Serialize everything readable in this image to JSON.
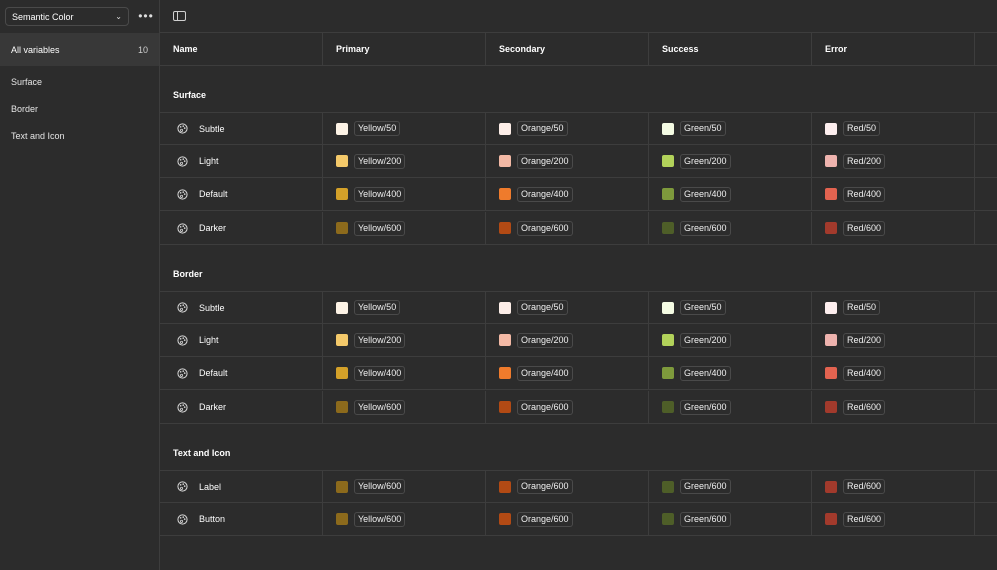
{
  "sidebar": {
    "collection": "Semantic Color",
    "all_label": "All variables",
    "all_count": "10",
    "groups": [
      "Surface",
      "Border",
      "Text and Icon"
    ]
  },
  "columns": [
    "Name",
    "Primary",
    "Secondary",
    "Success",
    "Error"
  ],
  "sections": [
    {
      "title": "Surface",
      "rows": [
        {
          "name": "Subtle",
          "values": [
            [
              "#fdf3e6",
              "Yellow/50"
            ],
            [
              "#fdeee8",
              "Orange/50"
            ],
            [
              "#f4fbe3",
              "Green/50"
            ],
            [
              "#fdeeee",
              "Red/50"
            ]
          ]
        },
        {
          "name": "Light",
          "values": [
            [
              "#f4c96a",
              "Yellow/200"
            ],
            [
              "#f3b9a5",
              "Orange/200"
            ],
            [
              "#b2d25a",
              "Green/200"
            ],
            [
              "#eeb3ae",
              "Red/200"
            ]
          ]
        },
        {
          "name": "Default",
          "values": [
            [
              "#d4a129",
              "Yellow/400"
            ],
            [
              "#ef7b2c",
              "Orange/400"
            ],
            [
              "#7e9a3c",
              "Green/400"
            ],
            [
              "#e36350",
              "Red/400"
            ]
          ]
        },
        {
          "name": "Darker",
          "values": [
            [
              "#8c6a1c",
              "Yellow/600"
            ],
            [
              "#b24a14",
              "Orange/600"
            ],
            [
              "#4e5e28",
              "Green/600"
            ],
            [
              "#a23a2c",
              "Red/600"
            ]
          ]
        }
      ]
    },
    {
      "title": "Border",
      "rows": [
        {
          "name": "Subtle",
          "values": [
            [
              "#fdf3e6",
              "Yellow/50"
            ],
            [
              "#fdeee8",
              "Orange/50"
            ],
            [
              "#f4fbe3",
              "Green/50"
            ],
            [
              "#fdeeee",
              "Red/50"
            ]
          ]
        },
        {
          "name": "Light",
          "values": [
            [
              "#f4c96a",
              "Yellow/200"
            ],
            [
              "#f3b9a5",
              "Orange/200"
            ],
            [
              "#b2d25a",
              "Green/200"
            ],
            [
              "#eeb3ae",
              "Red/200"
            ]
          ]
        },
        {
          "name": "Default",
          "values": [
            [
              "#d4a129",
              "Yellow/400"
            ],
            [
              "#ef7b2c",
              "Orange/400"
            ],
            [
              "#7e9a3c",
              "Green/400"
            ],
            [
              "#e36350",
              "Red/400"
            ]
          ]
        },
        {
          "name": "Darker",
          "values": [
            [
              "#8c6a1c",
              "Yellow/600"
            ],
            [
              "#b24a14",
              "Orange/600"
            ],
            [
              "#4e5e28",
              "Green/600"
            ],
            [
              "#a23a2c",
              "Red/600"
            ]
          ]
        }
      ]
    },
    {
      "title": "Text and Icon",
      "rows": [
        {
          "name": "Label",
          "values": [
            [
              "#8c6a1c",
              "Yellow/600"
            ],
            [
              "#b24a14",
              "Orange/600"
            ],
            [
              "#4e5e28",
              "Green/600"
            ],
            [
              "#a23a2c",
              "Red/600"
            ]
          ]
        },
        {
          "name": "Button",
          "values": [
            [
              "#8c6a1c",
              "Yellow/600"
            ],
            [
              "#b24a14",
              "Orange/600"
            ],
            [
              "#4e5e28",
              "Green/600"
            ],
            [
              "#a23a2c",
              "Red/600"
            ]
          ]
        }
      ]
    }
  ]
}
